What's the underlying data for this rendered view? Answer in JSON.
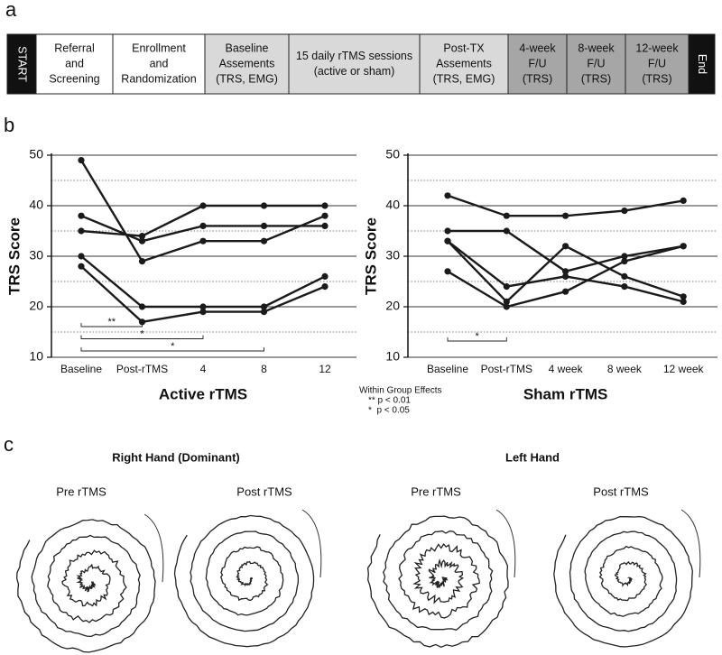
{
  "panel_labels": [
    "a",
    "b",
    "c"
  ],
  "flowchart": {
    "boxes": [
      {
        "lines": [
          "START"
        ]
      },
      {
        "lines": [
          "Referral",
          "and",
          "Screening"
        ]
      },
      {
        "lines": [
          "Enrollment",
          "and",
          "Randomization"
        ]
      },
      {
        "lines": [
          "Baseline",
          "Assements",
          "(TRS, EMG)"
        ]
      },
      {
        "lines": [
          "15 daily rTMS sessions",
          "(active or sham)"
        ]
      },
      {
        "lines": [
          "Post-TX",
          "Assements",
          "(TRS, EMG)"
        ]
      },
      {
        "lines": [
          "4-week",
          "F/U",
          "(TRS)"
        ]
      },
      {
        "lines": [
          "8-week",
          "F/U",
          "(TRS)"
        ]
      },
      {
        "lines": [
          "12-week",
          "F/U",
          "(TRS)"
        ]
      },
      {
        "lines": [
          "End"
        ]
      }
    ]
  },
  "chart_data": [
    {
      "type": "line",
      "title": "Active rTMS",
      "y_label": "TRS Score",
      "categories": [
        "Baseline",
        "Post-rTMS",
        "4",
        "8",
        "12"
      ],
      "series": [
        {
          "color": "#1a1a1a",
          "values": [
            49,
            29,
            33,
            33,
            38
          ]
        },
        {
          "color": "#1a1a1a",
          "values": [
            38,
            33,
            36,
            36,
            36
          ]
        },
        {
          "color": "#1a1a1a",
          "values": [
            35,
            34,
            40,
            40,
            40
          ]
        },
        {
          "color": "#1a1a1a",
          "values": [
            30,
            20,
            20,
            20,
            26
          ]
        },
        {
          "color": "#1a1a1a",
          "values": [
            28,
            17,
            19,
            19,
            24
          ]
        }
      ],
      "ylim": [
        10,
        50
      ],
      "yticks": [
        10,
        20,
        30,
        40,
        50
      ],
      "minor_yticks": [
        15,
        25,
        35,
        45
      ],
      "grid": true,
      "annotations": [
        {
          "label": "**",
          "from": 0,
          "to": 1
        },
        {
          "label": "*",
          "from": 0,
          "to": 2
        },
        {
          "label": "*",
          "from": 0,
          "to": 3
        }
      ]
    },
    {
      "type": "line",
      "title": "Sham rTMS",
      "y_label": "TRS Score",
      "categories": [
        "Baseline",
        "Post-rTMS",
        "4 week",
        "8 week",
        "12 week"
      ],
      "series": [
        {
          "color": "#1a1a1a",
          "values": [
            42,
            38,
            38,
            39,
            41
          ]
        },
        {
          "color": "#1a1a1a",
          "values": [
            35,
            35,
            27,
            30,
            32
          ]
        },
        {
          "color": "#1a1a1a",
          "values": [
            33,
            21,
            32,
            26,
            22
          ]
        },
        {
          "color": "#1a1a1a",
          "values": [
            33,
            24,
            26,
            24,
            21
          ]
        },
        {
          "color": "#1a1a1a",
          "values": [
            27,
            20,
            23,
            29,
            32
          ]
        }
      ],
      "ylim": [
        10,
        50
      ],
      "yticks": [
        10,
        20,
        30,
        40,
        50
      ],
      "minor_yticks": [
        15,
        25,
        35,
        45
      ],
      "grid": true,
      "annotations": [
        {
          "label": "*",
          "from": 0,
          "to": 1
        }
      ]
    }
  ],
  "significance_key": [
    "Within Group Effects",
    "** p < 0.01",
    "*  p < 0.05"
  ],
  "drawings": {
    "headings": [
      "Right Hand (Dominant)",
      "Left Hand"
    ],
    "labels": [
      "Pre rTMS",
      "Post rTMS",
      "Pre rTMS",
      "Post rTMS"
    ]
  }
}
